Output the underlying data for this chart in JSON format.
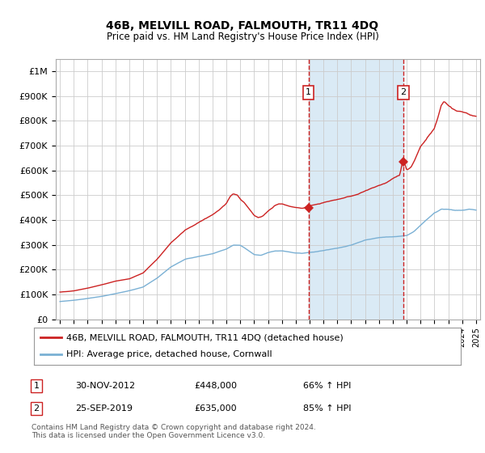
{
  "title": "46B, MELVILL ROAD, FALMOUTH, TR11 4DQ",
  "subtitle": "Price paid vs. HM Land Registry's House Price Index (HPI)",
  "legend_line1": "46B, MELVILL ROAD, FALMOUTH, TR11 4DQ (detached house)",
  "legend_line2": "HPI: Average price, detached house, Cornwall",
  "footnote1": "Contains HM Land Registry data © Crown copyright and database right 2024.",
  "footnote2": "This data is licensed under the Open Government Licence v3.0.",
  "annotation1_label": "1",
  "annotation1_date": "30-NOV-2012",
  "annotation1_price": "£448,000",
  "annotation1_pct": "66% ↑ HPI",
  "annotation2_label": "2",
  "annotation2_date": "25-SEP-2019",
  "annotation2_price": "£635,000",
  "annotation2_pct": "85% ↑ HPI",
  "vline1_x": 2012.92,
  "vline2_x": 2019.75,
  "sale1_x": 2012.92,
  "sale1_y": 448000,
  "sale2_x": 2019.75,
  "sale2_y": 635000,
  "hpi_color": "#7ab0d4",
  "price_color": "#cc2222",
  "shade_color": "#daeaf5",
  "ylim": [
    0,
    1050000
  ],
  "xlim": [
    1994.7,
    2025.3
  ],
  "yticks": [
    0,
    100000,
    200000,
    300000,
    400000,
    500000,
    600000,
    700000,
    800000,
    900000,
    1000000
  ],
  "ytick_labels": [
    "£0",
    "£100K",
    "£200K",
    "£300K",
    "£400K",
    "£500K",
    "£600K",
    "£700K",
    "£800K",
    "£900K",
    "£1M"
  ],
  "xtick_start": 1995,
  "xtick_end": 2025
}
